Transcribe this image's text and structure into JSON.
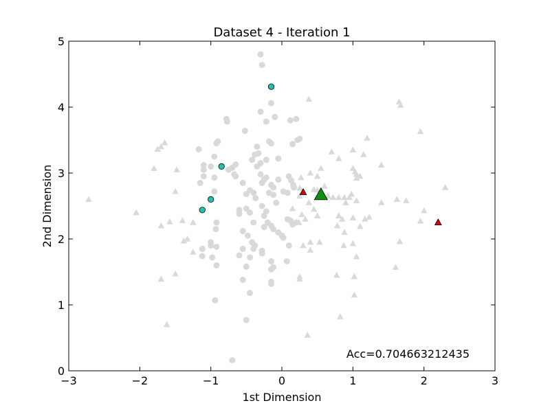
{
  "chart_data": {
    "type": "scatter",
    "title": "Dataset 4 - Iteration 1",
    "xlabel": "1st Dimension",
    "ylabel": "2nd Dimension",
    "xlim": [
      -3,
      3
    ],
    "ylim": [
      0,
      5
    ],
    "xticks": [
      -3,
      -2,
      -1,
      0,
      1,
      2,
      3
    ],
    "xtick_labels": [
      "−3",
      "−2",
      "−1",
      "0",
      "1",
      "2",
      "3"
    ],
    "yticks": [
      0,
      1,
      2,
      3,
      4,
      5
    ],
    "ytick_labels": [
      "0",
      "1",
      "2",
      "3",
      "4",
      "5"
    ],
    "grid": false,
    "annotation": "Acc=0.704663212435",
    "colors": {
      "background_points": "#d9d9d9",
      "selected_circles": "#20c0b8",
      "selected_triangles": "#e00000",
      "centroid": "#109010"
    },
    "series": [
      {
        "marker": "circle",
        "color": "#d9d9d9",
        "points": [
          [
            -0.3,
            4.8
          ],
          [
            -0.28,
            4.64
          ],
          [
            -0.15,
            4.06
          ],
          [
            -0.3,
            3.93
          ],
          [
            -0.22,
            3.78
          ],
          [
            -0.1,
            3.85
          ],
          [
            -0.78,
            3.82
          ],
          [
            -0.77,
            3.78
          ],
          [
            -0.52,
            3.64
          ],
          [
            -0.92,
            3.45
          ],
          [
            -0.9,
            3.48
          ],
          [
            -0.35,
            3.4
          ],
          [
            -0.33,
            3.3
          ],
          [
            -0.38,
            3.28
          ],
          [
            -0.42,
            3.2
          ],
          [
            -0.3,
            3.15
          ],
          [
            -0.18,
            3.48
          ],
          [
            -0.15,
            3.45
          ],
          [
            0.12,
            3.8
          ],
          [
            0.2,
            3.82
          ],
          [
            0.22,
            3.5
          ],
          [
            0.25,
            3.52
          ],
          [
            0.15,
            3.44
          ],
          [
            -1.17,
            3.36
          ],
          [
            -1.1,
            3.12
          ],
          [
            -1.1,
            3.05
          ],
          [
            -1.0,
            3.1
          ],
          [
            -0.95,
            3.25
          ],
          [
            -1.1,
            2.95
          ],
          [
            -1.15,
            2.85
          ],
          [
            -0.95,
            2.93
          ],
          [
            -0.75,
            3.05
          ],
          [
            -0.7,
            3.08
          ],
          [
            -0.65,
            3.13
          ],
          [
            -0.67,
            2.98
          ],
          [
            -0.65,
            2.95
          ],
          [
            -0.55,
            2.85
          ],
          [
            -0.5,
            2.68
          ],
          [
            -0.35,
            3.1
          ],
          [
            -0.22,
            3.2
          ],
          [
            -0.05,
            3.22
          ],
          [
            -0.3,
            2.98
          ],
          [
            -0.25,
            2.9
          ],
          [
            -0.22,
            2.93
          ],
          [
            -0.28,
            2.85
          ],
          [
            -0.15,
            2.82
          ],
          [
            -0.12,
            2.78
          ],
          [
            -0.05,
            2.9
          ],
          [
            0.02,
            2.72
          ],
          [
            0.08,
            2.7
          ],
          [
            0.1,
            2.95
          ],
          [
            0.13,
            2.89
          ],
          [
            0.16,
            2.82
          ],
          [
            0.17,
            2.78
          ],
          [
            -0.45,
            2.74
          ],
          [
            -0.4,
            2.7
          ],
          [
            -0.37,
            2.62
          ],
          [
            -0.28,
            2.5
          ],
          [
            -0.22,
            2.42
          ],
          [
            -0.18,
            2.7
          ],
          [
            -0.12,
            2.67
          ],
          [
            -0.08,
            2.55
          ],
          [
            -0.95,
            2.72
          ],
          [
            -0.6,
            2.44
          ],
          [
            -0.5,
            2.46
          ],
          [
            -0.6,
            2.38
          ],
          [
            -0.45,
            2.4
          ],
          [
            -0.25,
            2.35
          ],
          [
            -0.2,
            2.25
          ],
          [
            -0.15,
            2.2
          ],
          [
            -0.4,
            2.25
          ],
          [
            -0.55,
            2.12
          ],
          [
            -0.48,
            2.05
          ],
          [
            -0.42,
            1.95
          ],
          [
            -0.38,
            1.9
          ],
          [
            -0.25,
            2.18
          ],
          [
            -0.12,
            2.15
          ],
          [
            -0.05,
            2.1
          ],
          [
            0.0,
            2.05
          ],
          [
            0.02,
            2.02
          ],
          [
            0.08,
            2.3
          ],
          [
            0.12,
            2.28
          ],
          [
            0.15,
            2.22
          ],
          [
            0.2,
            2.25
          ],
          [
            0.1,
            1.9
          ],
          [
            -0.92,
            2.25
          ],
          [
            -0.93,
            2.15
          ],
          [
            -1.0,
            1.95
          ],
          [
            -1.0,
            1.9
          ],
          [
            -0.92,
            1.88
          ],
          [
            -1.12,
            1.85
          ],
          [
            -1.12,
            1.74
          ],
          [
            -0.98,
            1.72
          ],
          [
            -0.92,
            1.6
          ],
          [
            -0.6,
            1.75
          ],
          [
            -0.55,
            1.85
          ],
          [
            -0.5,
            1.58
          ],
          [
            -0.45,
            1.72
          ],
          [
            -0.4,
            1.85
          ],
          [
            -0.28,
            1.82
          ],
          [
            -0.28,
            1.78
          ],
          [
            -0.15,
            1.66
          ],
          [
            -0.15,
            1.54
          ],
          [
            -0.12,
            1.57
          ],
          [
            0.07,
            1.66
          ],
          [
            -0.55,
            1.38
          ],
          [
            -0.15,
            1.35
          ],
          [
            -0.15,
            1.32
          ],
          [
            -0.45,
            1.18
          ],
          [
            -0.94,
            1.07
          ],
          [
            -0.5,
            0.77
          ],
          [
            -0.7,
            0.16
          ]
        ]
      },
      {
        "marker": "triangle",
        "color": "#d9d9d9",
        "points": [
          [
            -2.72,
            2.6
          ],
          [
            -2.05,
            2.4
          ],
          [
            -1.8,
            3.07
          ],
          [
            -1.75,
            3.36
          ],
          [
            -1.7,
            3.4
          ],
          [
            -1.65,
            3.46
          ],
          [
            -1.48,
            3.05
          ],
          [
            -1.5,
            2.72
          ],
          [
            -1.7,
            2.2
          ],
          [
            -1.58,
            2.26
          ],
          [
            -1.4,
            2.28
          ],
          [
            -1.38,
            1.97
          ],
          [
            -1.33,
            2.0
          ],
          [
            -1.25,
            2.25
          ],
          [
            -1.25,
            1.8
          ],
          [
            -1.5,
            1.47
          ],
          [
            -1.7,
            1.39
          ],
          [
            -1.62,
            0.7
          ],
          [
            0.38,
            4.12
          ],
          [
            0.55,
            3.07
          ],
          [
            0.4,
            3.0
          ],
          [
            0.27,
            2.93
          ],
          [
            0.5,
            2.95
          ],
          [
            0.25,
            2.77
          ],
          [
            0.45,
            2.75
          ],
          [
            0.5,
            2.74
          ],
          [
            0.6,
            2.8
          ],
          [
            0.25,
            2.65
          ],
          [
            0.38,
            2.55
          ],
          [
            0.45,
            2.45
          ],
          [
            0.5,
            2.35
          ],
          [
            0.15,
            2.46
          ],
          [
            0.28,
            2.37
          ],
          [
            0.33,
            2.3
          ],
          [
            0.24,
            2.25
          ],
          [
            0.4,
            1.95
          ],
          [
            0.4,
            1.83
          ],
          [
            0.53,
            1.95
          ],
          [
            0.3,
            1.9
          ],
          [
            0.25,
            1.43
          ],
          [
            0.25,
            1.39
          ],
          [
            0.36,
            0.54
          ],
          [
            0.7,
            3.32
          ],
          [
            0.8,
            3.22
          ],
          [
            1.0,
            3.35
          ],
          [
            1.15,
            3.28
          ],
          [
            1.2,
            3.53
          ],
          [
            1.0,
            3.07
          ],
          [
            1.03,
            3.02
          ],
          [
            1.05,
            2.98
          ],
          [
            1.1,
            2.95
          ],
          [
            1.05,
            2.92
          ],
          [
            1.4,
            3.12
          ],
          [
            0.65,
            2.65
          ],
          [
            0.72,
            2.63
          ],
          [
            0.8,
            2.63
          ],
          [
            0.88,
            2.63
          ],
          [
            0.95,
            2.63
          ],
          [
            0.98,
            2.68
          ],
          [
            0.9,
            2.55
          ],
          [
            1.05,
            2.58
          ],
          [
            0.8,
            2.35
          ],
          [
            0.85,
            2.3
          ],
          [
            0.78,
            2.2
          ],
          [
            0.88,
            2.1
          ],
          [
            0.87,
            1.9
          ],
          [
            1.0,
            1.93
          ],
          [
            1.1,
            2.19
          ],
          [
            1.17,
            2.3
          ],
          [
            1.23,
            2.33
          ],
          [
            1.0,
            2.32
          ],
          [
            1.4,
            2.55
          ],
          [
            1.05,
            1.73
          ],
          [
            0.77,
            1.45
          ],
          [
            1.02,
            1.43
          ],
          [
            0.82,
            0.82
          ],
          [
            1.02,
            1.15
          ],
          [
            1.6,
            1.57
          ],
          [
            1.62,
            2.6
          ],
          [
            1.75,
            2.58
          ],
          [
            1.66,
            1.96
          ],
          [
            1.65,
            4.08
          ],
          [
            1.67,
            4.03
          ],
          [
            1.95,
            3.63
          ],
          [
            1.95,
            2.27
          ],
          [
            2.0,
            2.43
          ],
          [
            2.3,
            2.78
          ]
        ]
      },
      {
        "marker": "circle",
        "color": "#20c0b8",
        "points": [
          [
            -0.15,
            4.31
          ],
          [
            -0.85,
            3.1
          ],
          [
            -1.0,
            2.6
          ],
          [
            -1.12,
            2.44
          ]
        ]
      },
      {
        "marker": "triangle",
        "color": "#e00000",
        "points": [
          [
            0.3,
            2.71
          ],
          [
            2.2,
            2.25
          ]
        ]
      },
      {
        "marker": "triangle-large",
        "color": "#109010",
        "points": [
          [
            0.55,
            2.67
          ]
        ]
      }
    ]
  }
}
